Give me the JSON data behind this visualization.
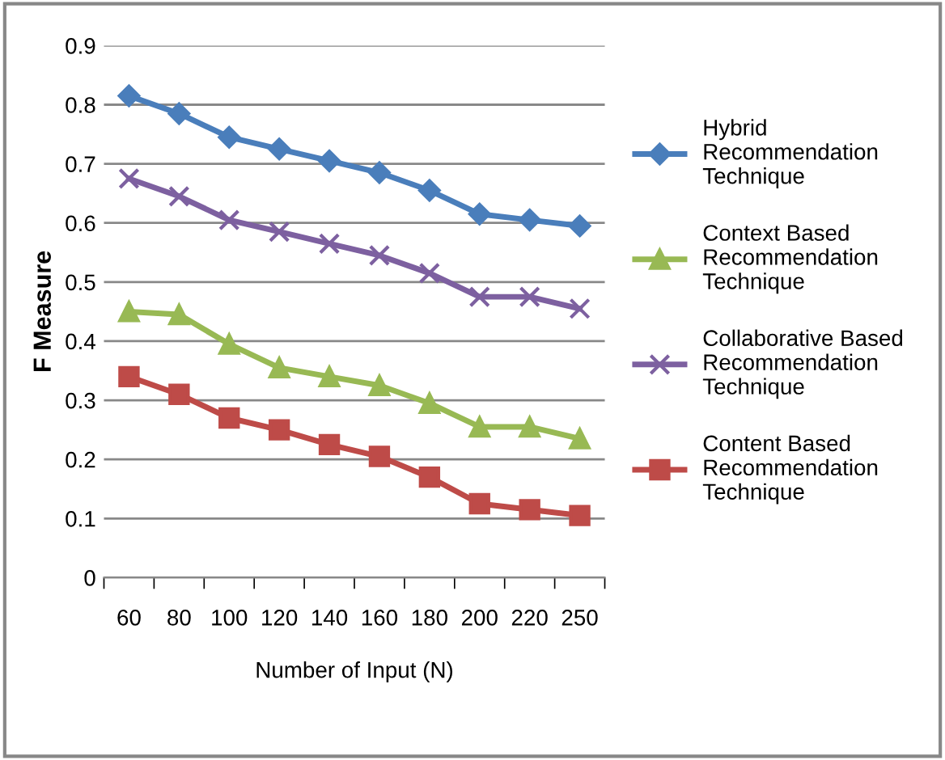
{
  "chart_data": {
    "type": "line",
    "xlabel": "Number of Input (N)",
    "ylabel": "F Measure",
    "categories": [
      "60",
      "80",
      "100",
      "120",
      "140",
      "160",
      "180",
      "200",
      "220",
      "250"
    ],
    "series": [
      {
        "name": "Hybrid Recommendation Technique",
        "color": "#4a7ebb",
        "marker": "diamond",
        "values": [
          0.815,
          0.785,
          0.745,
          0.725,
          0.705,
          0.685,
          0.655,
          0.615,
          0.605,
          0.595
        ]
      },
      {
        "name": "Context Based Recommendation Technique",
        "color": "#98b954",
        "marker": "triangle",
        "values": [
          0.45,
          0.445,
          0.395,
          0.355,
          0.34,
          0.325,
          0.295,
          0.255,
          0.255,
          0.235
        ]
      },
      {
        "name": "Collaborative Based Recommendation Technique",
        "color": "#7d60a0",
        "marker": "cross",
        "values": [
          0.675,
          0.645,
          0.605,
          0.585,
          0.565,
          0.545,
          0.515,
          0.475,
          0.475,
          0.455
        ]
      },
      {
        "name": "Content Based Recommendation Technique",
        "color": "#be4b48",
        "marker": "square",
        "values": [
          0.34,
          0.31,
          0.27,
          0.25,
          0.225,
          0.205,
          0.17,
          0.125,
          0.115,
          0.105
        ]
      }
    ],
    "ylim": [
      0,
      0.9
    ],
    "yticks": [
      0,
      0.1,
      0.2,
      0.3,
      0.4,
      0.5,
      0.6,
      0.7,
      0.8,
      0.9
    ],
    "grid": "y",
    "legend": "right",
    "line_style": "solid"
  }
}
